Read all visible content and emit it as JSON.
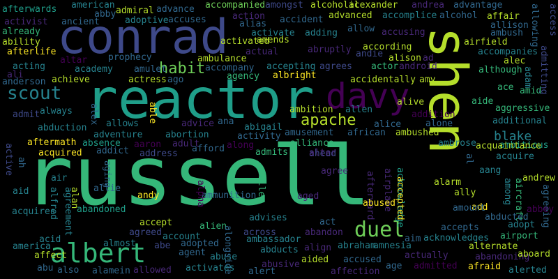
{
  "palette": {
    "background": "#000000",
    "viridis": [
      "#440154",
      "#482878",
      "#3e4989",
      "#31688e",
      "#26828e",
      "#1f9e89",
      "#35b779",
      "#6ece58",
      "#b5de2b",
      "#fde725"
    ]
  },
  "words": [
    {
      "text": "russell",
      "weight": 100
    },
    {
      "text": "shen",
      "weight": 80
    },
    {
      "text": "reactor",
      "weight": 70
    },
    {
      "text": "conrad",
      "weight": 60
    },
    {
      "text": "davy",
      "weight": 42
    },
    {
      "text": "albert",
      "weight": 36
    },
    {
      "text": "duel",
      "weight": 30
    },
    {
      "text": "scout",
      "weight": 26
    },
    {
      "text": "habit",
      "weight": 22
    },
    {
      "text": "apache",
      "weight": 22
    },
    {
      "text": "blake",
      "weight": 18
    },
    {
      "text": "afterwards"
    },
    {
      "text": "american"
    },
    {
      "text": "admiral"
    },
    {
      "text": "advance"
    },
    {
      "text": "accompanied"
    },
    {
      "text": "amongst"
    },
    {
      "text": "alcoholic"
    },
    {
      "text": "alexander"
    },
    {
      "text": "andrea"
    },
    {
      "text": "advantage"
    },
    {
      "text": "activist"
    },
    {
      "text": "ancient"
    },
    {
      "text": "abby"
    },
    {
      "text": "adoptive"
    },
    {
      "text": "accuses"
    },
    {
      "text": "action"
    },
    {
      "text": "accident"
    },
    {
      "text": "advanced"
    },
    {
      "text": "accomplice"
    },
    {
      "text": "alcohol"
    },
    {
      "text": "affair"
    },
    {
      "text": "allowing"
    },
    {
      "text": "access"
    },
    {
      "text": "already"
    },
    {
      "text": "alias"
    },
    {
      "text": "activate"
    },
    {
      "text": "adding"
    },
    {
      "text": "allow"
    },
    {
      "text": "accusing"
    },
    {
      "text": "allison"
    },
    {
      "text": "ambush"
    },
    {
      "text": "ability"
    },
    {
      "text": "activated"
    },
    {
      "text": "amends"
    },
    {
      "text": "according"
    },
    {
      "text": "airfield"
    },
    {
      "text": "afterlife"
    },
    {
      "text": "actual"
    },
    {
      "text": "abruptly"
    },
    {
      "text": "andie"
    },
    {
      "text": "alison"
    },
    {
      "text": "ad"
    },
    {
      "text": "accompanies"
    },
    {
      "text": "prophecy"
    },
    {
      "text": "altar"
    },
    {
      "text": "ambulance"
    },
    {
      "text": "android"
    },
    {
      "text": "alec"
    },
    {
      "text": "acting"
    },
    {
      "text": "academy"
    },
    {
      "text": "amulet"
    },
    {
      "text": "accompany"
    },
    {
      "text": "accepting"
    },
    {
      "text": "agrees"
    },
    {
      "text": "actor"
    },
    {
      "text": "adam"
    },
    {
      "text": "although"
    },
    {
      "text": "admitting"
    },
    {
      "text": "ali"
    },
    {
      "text": "anderson"
    },
    {
      "text": "achieve"
    },
    {
      "text": "actress"
    },
    {
      "text": "ago"
    },
    {
      "text": "agency"
    },
    {
      "text": "albright"
    },
    {
      "text": "accidentally"
    },
    {
      "text": "amy"
    },
    {
      "text": "ace"
    },
    {
      "text": "amid"
    },
    {
      "text": "admit"
    },
    {
      "text": "always"
    },
    {
      "text": "alex"
    },
    {
      "text": "ambition"
    },
    {
      "text": "allen"
    },
    {
      "text": "alive"
    },
    {
      "text": "addition"
    },
    {
      "text": "aide"
    },
    {
      "text": "aggressive"
    },
    {
      "text": "abduction"
    },
    {
      "text": "allows"
    },
    {
      "text": "advice"
    },
    {
      "text": "ana"
    },
    {
      "text": "alice"
    },
    {
      "text": "alone"
    },
    {
      "text": "additional"
    },
    {
      "text": "adventure"
    },
    {
      "text": "abortion"
    },
    {
      "text": "able"
    },
    {
      "text": "activity"
    },
    {
      "text": "abigail"
    },
    {
      "text": "ambushed"
    },
    {
      "text": "aftermath"
    },
    {
      "text": "absence"
    },
    {
      "text": "aaron"
    },
    {
      "text": "adult"
    },
    {
      "text": "amusement"
    },
    {
      "text": "african"
    },
    {
      "text": "ambrose"
    },
    {
      "text": "ambitious"
    },
    {
      "text": "acquired"
    },
    {
      "text": "addict"
    },
    {
      "text": "address"
    },
    {
      "text": "afford"
    },
    {
      "text": "along"
    },
    {
      "text": "alliance"
    },
    {
      "text": "ahead"
    },
    {
      "text": "acquaintance"
    },
    {
      "text": "acquire"
    },
    {
      "text": "active"
    },
    {
      "text": "admits"
    },
    {
      "text": "alter"
    },
    {
      "text": "ah"
    },
    {
      "text": "aging"
    },
    {
      "text": "agree"
    },
    {
      "text": "acknowledge"
    },
    {
      "text": "aang"
    },
    {
      "text": "al"
    },
    {
      "text": "aid"
    },
    {
      "text": "air"
    },
    {
      "text": "airplane"
    },
    {
      "text": "afterward"
    },
    {
      "text": "alarm"
    },
    {
      "text": "among"
    },
    {
      "text": "andrew"
    },
    {
      "text": "alfred"
    },
    {
      "text": "agreement"
    },
    {
      "text": "alan"
    },
    {
      "text": "allie"
    },
    {
      "text": "andy"
    },
    {
      "text": "ammunition"
    },
    {
      "text": "alpha"
    },
    {
      "text": "alley"
    },
    {
      "text": "accepted"
    },
    {
      "text": "ally"
    },
    {
      "text": "aircraft"
    },
    {
      "text": "agreeing"
    },
    {
      "text": "aged"
    },
    {
      "text": "abused"
    },
    {
      "text": "add"
    },
    {
      "text": "abbey"
    },
    {
      "text": "acquires"
    },
    {
      "text": "abandoned"
    },
    {
      "text": "accept"
    },
    {
      "text": "alien"
    },
    {
      "text": "advises"
    },
    {
      "text": "act"
    },
    {
      "text": "amount"
    },
    {
      "text": "abducted"
    },
    {
      "text": "accepts"
    },
    {
      "text": "adopt"
    },
    {
      "text": "acid"
    },
    {
      "text": "agreed"
    },
    {
      "text": "account"
    },
    {
      "text": "across"
    },
    {
      "text": "abandon"
    },
    {
      "text": "acknowledges"
    },
    {
      "text": "airport"
    },
    {
      "text": "america"
    },
    {
      "text": "almost"
    },
    {
      "text": "abe"
    },
    {
      "text": "adopted"
    },
    {
      "text": "ambassador"
    },
    {
      "text": "abducts"
    },
    {
      "text": "align"
    },
    {
      "text": "abraham"
    },
    {
      "text": "aim"
    },
    {
      "text": "alternate"
    },
    {
      "text": "affect"
    },
    {
      "text": "agent"
    },
    {
      "text": "abuse"
    },
    {
      "text": "alongside"
    },
    {
      "text": "amnesia"
    },
    {
      "text": "actually"
    },
    {
      "text": "abandoning"
    },
    {
      "text": "aboard"
    },
    {
      "text": "abu"
    },
    {
      "text": "also"
    },
    {
      "text": "alamein"
    },
    {
      "text": "allowed"
    },
    {
      "text": "activates"
    },
    {
      "text": "abusive"
    },
    {
      "text": "alert"
    },
    {
      "text": "aided"
    },
    {
      "text": "accused"
    },
    {
      "text": "affection"
    },
    {
      "text": "age"
    },
    {
      "text": "admitted"
    },
    {
      "text": "afraid"
    },
    {
      "text": "alerted"
    }
  ]
}
